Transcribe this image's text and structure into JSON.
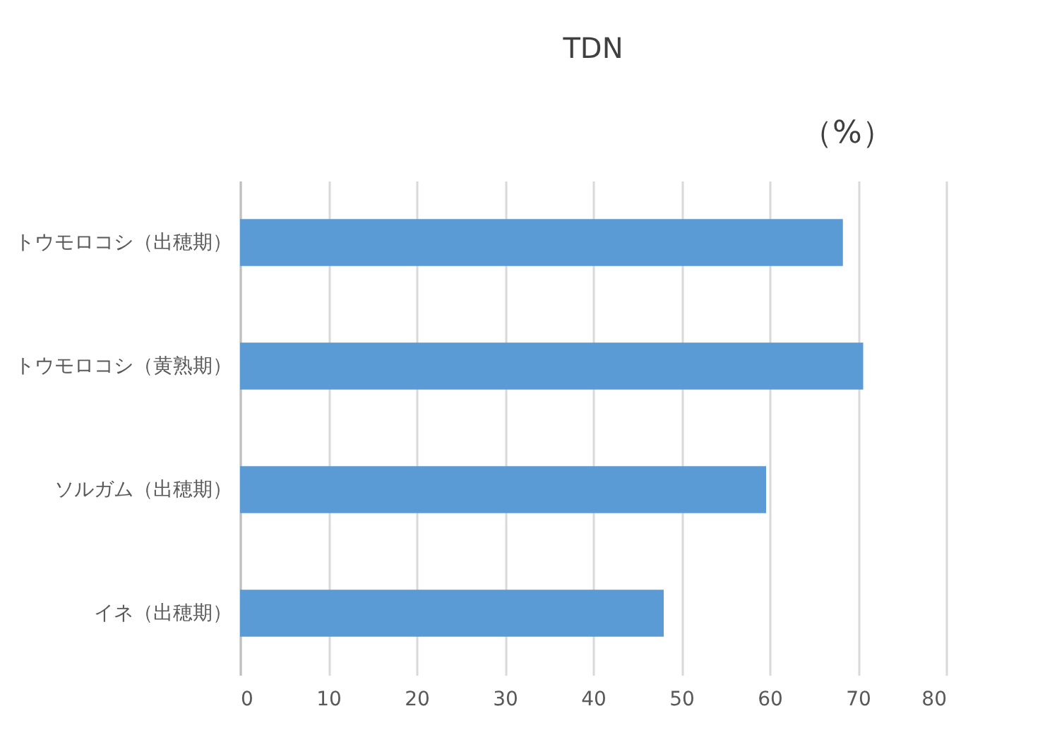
{
  "chart_data": {
    "type": "bar",
    "orientation": "horizontal",
    "title": "TDN",
    "annotations": [
      "（%）"
    ],
    "categories": [
      "トウモロコシ（出穂期）",
      "トウモロコシ（黄熟期）",
      "ソルガム（出穂期）",
      "イネ（出穂期）"
    ],
    "values": [
      68.3,
      70.6,
      59.6,
      48.0
    ],
    "color": "#5b9bd5",
    "xlim": [
      0,
      80
    ],
    "xticks": [
      0,
      10,
      20,
      30,
      40,
      50,
      60,
      70,
      80
    ],
    "grid": "x"
  }
}
